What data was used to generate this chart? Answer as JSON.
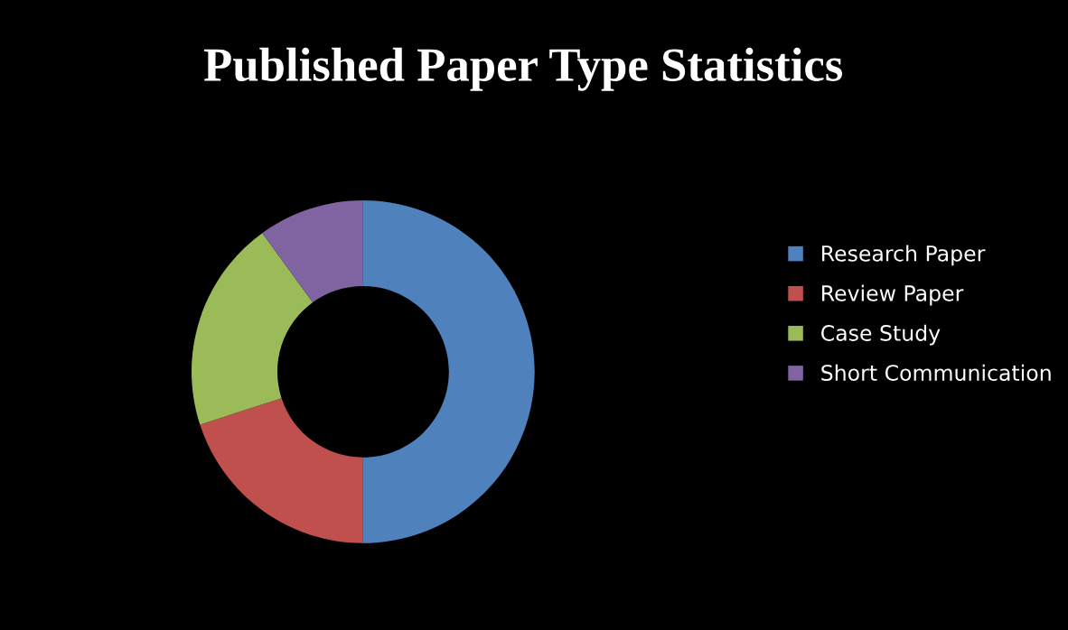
{
  "chart_data": {
    "type": "donut",
    "title": "Published Paper Type Statistics",
    "categories": [
      "Research Paper",
      "Review Paper",
      "Case Study",
      "Short Communication"
    ],
    "values": [
      50,
      20,
      20,
      10
    ],
    "colors": [
      "#4f81bd",
      "#c0504d",
      "#9bbb59",
      "#8064a2"
    ],
    "legend": "right"
  }
}
